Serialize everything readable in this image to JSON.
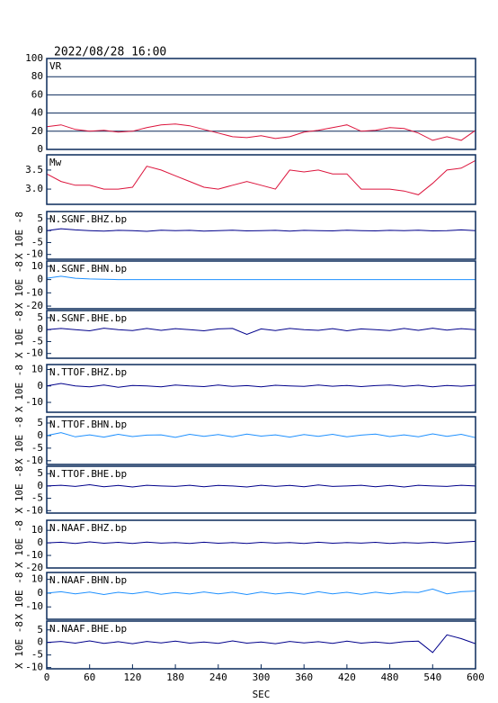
{
  "title": "2022/08/28 16:00",
  "chart_data": [
    {
      "type": "line",
      "label": "VR",
      "xlim": [
        0,
        600
      ],
      "ylim": [
        0,
        100
      ],
      "yticks": [
        0,
        20,
        40,
        60,
        80,
        100
      ],
      "grid": true,
      "x": [
        0,
        20,
        40,
        60,
        80,
        100,
        120,
        140,
        160,
        180,
        200,
        220,
        240,
        260,
        280,
        300,
        320,
        340,
        360,
        380,
        400,
        420,
        440,
        460,
        480,
        500,
        520,
        540,
        560,
        580,
        600
      ],
      "series": [
        {
          "color": "#dc143c",
          "values": [
            25,
            27,
            22,
            20,
            21,
            19,
            20,
            24,
            27,
            28,
            26,
            22,
            18,
            14,
            13,
            15,
            12,
            14,
            19,
            21,
            24,
            27,
            20,
            21,
            24,
            23,
            18,
            10,
            14,
            10,
            21
          ]
        }
      ]
    },
    {
      "type": "line",
      "label": "Mw",
      "xlim": [
        0,
        600
      ],
      "ylim": [
        2.6,
        3.9
      ],
      "yticks": [
        {
          "value": 3,
          "label": "3.0"
        },
        3.5
      ],
      "x": [
        0,
        20,
        40,
        60,
        80,
        100,
        120,
        140,
        160,
        180,
        200,
        220,
        240,
        260,
        280,
        300,
        320,
        340,
        360,
        380,
        400,
        420,
        440,
        460,
        480,
        500,
        520,
        540,
        560,
        580,
        600
      ],
      "series": [
        {
          "color": "#dc143c",
          "values": [
            3.4,
            3.2,
            3.1,
            3.1,
            3.0,
            3.0,
            3.05,
            3.6,
            3.5,
            3.35,
            3.2,
            3.05,
            3.0,
            3.1,
            3.2,
            3.1,
            3.0,
            3.5,
            3.45,
            3.5,
            3.4,
            3.4,
            3.0,
            3.0,
            3.0,
            2.95,
            2.85,
            3.15,
            3.5,
            3.55,
            3.75
          ]
        }
      ]
    },
    {
      "type": "line",
      "label": "N.SGNF.BHZ.bp",
      "y_label": "X 10E -8",
      "xlim": [
        0,
        600
      ],
      "ylim": [
        -12,
        8
      ],
      "yticks": [
        5,
        0,
        -5,
        -10
      ],
      "x": [
        0,
        20,
        40,
        60,
        80,
        100,
        120,
        140,
        160,
        180,
        200,
        220,
        240,
        260,
        280,
        300,
        320,
        340,
        360,
        380,
        400,
        420,
        440,
        460,
        480,
        500,
        520,
        540,
        560,
        580,
        600
      ],
      "series": [
        {
          "color": "#00008b",
          "values": [
            0,
            0.8,
            0.3,
            0,
            -0.2,
            0.1,
            0,
            -0.3,
            0.2,
            0,
            0.1,
            -0.2,
            0,
            0.2,
            -0.1,
            0,
            0.1,
            -0.2,
            0.1,
            0,
            -0.1,
            0.2,
            0,
            -0.1,
            0.1,
            0,
            0.2,
            -0.1,
            0,
            0.3,
            0
          ]
        }
      ]
    },
    {
      "type": "line",
      "label": "N.SGNF.BHN.bp",
      "y_label": "X 10E -8",
      "xlim": [
        0,
        600
      ],
      "ylim": [
        -22,
        14
      ],
      "yticks": [
        10,
        0,
        -10,
        -20
      ],
      "x": [
        0,
        20,
        40,
        60,
        80,
        100,
        120,
        140,
        160,
        180,
        200,
        220,
        240,
        260,
        280,
        300,
        320,
        340,
        360,
        380,
        400,
        420,
        440,
        460,
        480,
        500,
        520,
        540,
        560,
        580,
        600
      ],
      "series": [
        {
          "color": "#1e90ff",
          "values": [
            1,
            2.5,
            1,
            0.5,
            0.3,
            0,
            0,
            0,
            0,
            0,
            0,
            0,
            0,
            0,
            0,
            0,
            0,
            0,
            0,
            0,
            0,
            0,
            0,
            0,
            0,
            0,
            0,
            0,
            0,
            0,
            0
          ]
        }
      ]
    },
    {
      "type": "line",
      "label": "N.SGNF.BHE.bp",
      "y_label": "X 10E -8",
      "xlim": [
        0,
        600
      ],
      "ylim": [
        -12,
        8
      ],
      "yticks": [
        5,
        0,
        -5,
        -10
      ],
      "x": [
        0,
        20,
        40,
        60,
        80,
        100,
        120,
        140,
        160,
        180,
        200,
        220,
        240,
        260,
        280,
        300,
        320,
        340,
        360,
        380,
        400,
        420,
        440,
        460,
        480,
        500,
        520,
        540,
        560,
        580,
        600
      ],
      "series": [
        {
          "color": "#00008b",
          "values": [
            0,
            0.5,
            0,
            -0.5,
            0.6,
            0,
            -0.4,
            0.5,
            -0.3,
            0.4,
            0,
            -0.5,
            0.3,
            0.5,
            -2,
            0.3,
            -0.4,
            0.5,
            0,
            -0.3,
            0.4,
            -0.5,
            0.3,
            0,
            -0.4,
            0.5,
            -0.3,
            0.6,
            -0.2,
            0.4,
            0
          ]
        }
      ]
    },
    {
      "type": "line",
      "label": "N.TTOF.BHZ.bp",
      "y_label": "X 10E -8",
      "xlim": [
        0,
        600
      ],
      "ylim": [
        -16,
        13
      ],
      "yticks": [
        10,
        0,
        -10
      ],
      "x": [
        0,
        20,
        40,
        60,
        80,
        100,
        120,
        140,
        160,
        180,
        200,
        220,
        240,
        260,
        280,
        300,
        320,
        340,
        360,
        380,
        400,
        420,
        440,
        460,
        480,
        500,
        520,
        540,
        560,
        580,
        600
      ],
      "series": [
        {
          "color": "#00008b",
          "values": [
            0,
            1.5,
            0,
            -0.5,
            0.5,
            -0.8,
            0.3,
            0,
            -0.5,
            0.6,
            0,
            -0.4,
            0.5,
            -0.3,
            0.2,
            -0.5,
            0.4,
            0,
            -0.3,
            0.5,
            -0.2,
            0.3,
            -0.4,
            0.2,
            0.5,
            -0.3,
            0.4,
            -0.5,
            0.3,
            -0.2,
            0.4
          ]
        }
      ]
    },
    {
      "type": "line",
      "label": "N.TTOF.BHN.bp",
      "y_label": "X 10E -8",
      "xlim": [
        0,
        600
      ],
      "ylim": [
        -11.5,
        7.5
      ],
      "yticks": [
        5,
        0,
        -5,
        -10
      ],
      "x": [
        0,
        20,
        40,
        60,
        80,
        100,
        120,
        140,
        160,
        180,
        200,
        220,
        240,
        260,
        280,
        300,
        320,
        340,
        360,
        380,
        400,
        420,
        440,
        460,
        480,
        500,
        520,
        540,
        560,
        580,
        600
      ],
      "series": [
        {
          "color": "#1e90ff",
          "values": [
            0,
            1.2,
            -0.5,
            0.3,
            -0.6,
            0.5,
            -0.4,
            0.2,
            0.3,
            -0.7,
            0.5,
            -0.3,
            0.4,
            -0.5,
            0.6,
            -0.2,
            0.3,
            -0.6,
            0.4,
            -0.3,
            0.5,
            -0.5,
            0.2,
            0.6,
            -0.4,
            0.3,
            -0.5,
            0.7,
            -0.3,
            0.5,
            -0.8
          ]
        }
      ]
    },
    {
      "type": "line",
      "label": "N.TTOF.BHE.bp",
      "y_label": "X 10E -8",
      "xlim": [
        0,
        600
      ],
      "ylim": [
        -11,
        8
      ],
      "yticks": [
        5,
        0,
        -5,
        -10
      ],
      "x": [
        0,
        20,
        40,
        60,
        80,
        100,
        120,
        140,
        160,
        180,
        200,
        220,
        240,
        260,
        280,
        300,
        320,
        340,
        360,
        380,
        400,
        420,
        440,
        460,
        480,
        500,
        520,
        540,
        560,
        580,
        600
      ],
      "series": [
        {
          "color": "#00008b",
          "values": [
            0,
            0.3,
            -0.2,
            0.5,
            -0.3,
            0.2,
            -0.4,
            0.3,
            0,
            -0.2,
            0.3,
            -0.3,
            0.2,
            0,
            -0.4,
            0.3,
            -0.2,
            0.2,
            -0.3,
            0.4,
            -0.2,
            0,
            0.3,
            -0.3,
            0.2,
            -0.4,
            0.3,
            0,
            -0.2,
            0.3,
            0
          ]
        }
      ]
    },
    {
      "type": "line",
      "label": "N.NAAF.BHZ.bp",
      "y_label": "X 10E -8",
      "xlim": [
        0,
        600
      ],
      "ylim": [
        -20,
        18
      ],
      "yticks": [
        10,
        0,
        -10,
        -20
      ],
      "x": [
        0,
        20,
        40,
        60,
        80,
        100,
        120,
        140,
        160,
        180,
        200,
        220,
        240,
        260,
        280,
        300,
        320,
        340,
        360,
        380,
        400,
        420,
        440,
        460,
        480,
        500,
        520,
        540,
        560,
        580,
        600
      ],
      "series": [
        {
          "color": "#00008b",
          "values": [
            0,
            0.5,
            -0.5,
            0.8,
            -0.3,
            0.4,
            -0.5,
            0.6,
            -0.2,
            0.3,
            -0.4,
            0.5,
            -0.3,
            0.2,
            -0.5,
            0.4,
            -0.2,
            0.3,
            -0.4,
            0.5,
            -0.3,
            0.2,
            -0.2,
            0.4,
            -0.5,
            0.3,
            -0.2,
            0.4,
            -0.3,
            0.5,
            1.2
          ]
        }
      ]
    },
    {
      "type": "line",
      "label": "N.NAAF.BHN.bp",
      "y_label": "X 10E -8",
      "xlim": [
        0,
        600
      ],
      "ylim": [
        -19,
        15
      ],
      "yticks": [
        10,
        0,
        -10
      ],
      "x": [
        0,
        20,
        40,
        60,
        80,
        100,
        120,
        140,
        160,
        180,
        200,
        220,
        240,
        260,
        280,
        300,
        320,
        340,
        360,
        380,
        400,
        420,
        440,
        460,
        480,
        500,
        520,
        540,
        560,
        580,
        600
      ],
      "series": [
        {
          "color": "#1e90ff",
          "values": [
            0,
            1,
            -0.5,
            0.8,
            -1,
            0.6,
            -0.4,
            1,
            -0.8,
            0.5,
            -0.6,
            0.9,
            -0.5,
            0.7,
            -1,
            0.8,
            -0.6,
            0.5,
            -0.8,
            1,
            -0.5,
            0.6,
            -0.9,
            0.7,
            -0.5,
            0.8,
            0.5,
            3,
            -0.5,
            1,
            1.5
          ]
        }
      ]
    },
    {
      "type": "line",
      "label": "N.NAAF.BHE.bp",
      "y_label": "X 10E -8",
      "xlim": [
        0,
        600
      ],
      "ylim": [
        -10.5,
        8.5
      ],
      "yticks": [
        5,
        0,
        -5,
        -10
      ],
      "xticks": [
        0,
        60,
        120,
        180,
        240,
        300,
        360,
        420,
        480,
        540,
        600
      ],
      "x_label": "SEC",
      "x": [
        0,
        20,
        40,
        60,
        80,
        100,
        120,
        140,
        160,
        180,
        200,
        220,
        240,
        260,
        280,
        300,
        320,
        340,
        360,
        380,
        400,
        420,
        440,
        460,
        480,
        500,
        520,
        540,
        560,
        580,
        600
      ],
      "series": [
        {
          "color": "#00008b",
          "values": [
            0,
            0.4,
            -0.3,
            0.6,
            -0.4,
            0.3,
            -0.5,
            0.4,
            -0.2,
            0.5,
            -0.3,
            0.2,
            -0.4,
            0.6,
            -0.3,
            0.2,
            -0.5,
            0.4,
            -0.2,
            0.3,
            -0.4,
            0.5,
            -0.3,
            0.2,
            -0.4,
            0.3,
            0.5,
            -4,
            3,
            1.5,
            -0.5
          ]
        }
      ]
    }
  ]
}
